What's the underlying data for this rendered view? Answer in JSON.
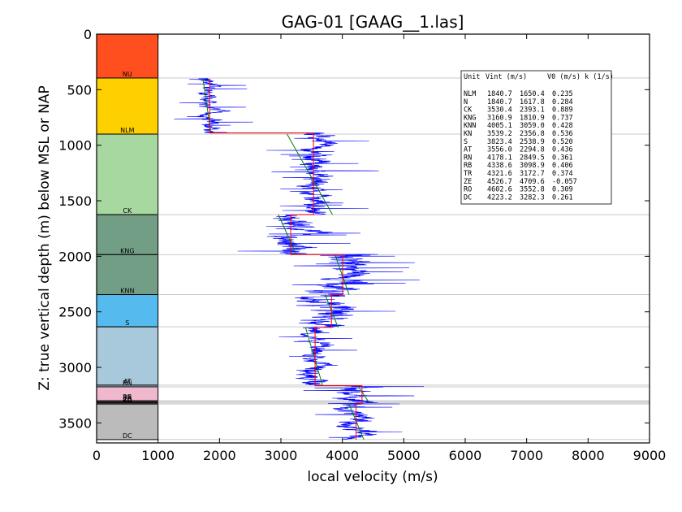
{
  "chart_data": {
    "type": "line",
    "title": "GAG-01 [GAAG__1.las]",
    "xlabel": "local velocity (m/s)",
    "ylabel": "Z: true vertical depth (m) below MSL or NAP",
    "xlim": [
      0,
      9000
    ],
    "ylim": [
      3680,
      0
    ],
    "y_inverted": true,
    "xticks": [
      "0",
      "1000",
      "2000",
      "3000",
      "4000",
      "5000",
      "6000",
      "7000",
      "8000",
      "9000"
    ],
    "yticks": [
      "0",
      "500",
      "1000",
      "1500",
      "2000",
      "2500",
      "3000",
      "3500"
    ],
    "grid": "horizontal lines at unit boundaries",
    "units": [
      {
        "name": "NU",
        "top": 0,
        "base": 395,
        "color": "#ff4f1f"
      },
      {
        "name": "NLM",
        "top": 395,
        "base": 900,
        "color": "#ffd000"
      },
      {
        "name": "CK",
        "top": 900,
        "base": 1625,
        "color": "#a6d8a0"
      },
      {
        "name": "KNG",
        "top": 1625,
        "base": 1985,
        "color": "#739e86"
      },
      {
        "name": "KNN",
        "top": 1985,
        "base": 2345,
        "color": "#739e86"
      },
      {
        "name": "S",
        "top": 2345,
        "base": 2635,
        "color": "#55bbee"
      },
      {
        "name": "AT",
        "top": 2635,
        "base": 3160,
        "color": "#a8c8dc"
      },
      {
        "name": "RN",
        "top": 3160,
        "base": 3175,
        "color": "#a8c8dc"
      },
      {
        "name": "RB",
        "top": 3175,
        "base": 3300,
        "color": "#f0b8cc"
      },
      {
        "name": "TR",
        "top": 3300,
        "base": 3310,
        "color": "#f0b8cc"
      },
      {
        "name": "ZE",
        "top": 3310,
        "base": 3320,
        "color": "#8a8a8a"
      },
      {
        "name": "RO",
        "top": 3320,
        "base": 3330,
        "color": "#bbbbbb"
      },
      {
        "name": "DC",
        "top": 3330,
        "base": 3650,
        "color": "#bbbbbb"
      }
    ],
    "legend": {
      "header": [
        "Unit",
        "Vint (m/s)",
        "V0 (m/s)",
        "k (1/s)"
      ],
      "rows": [
        [
          "NLM",
          "1840.7",
          "1650.4",
          "0.235"
        ],
        [
          "N",
          "1840.7",
          "1617.8",
          "0.284"
        ],
        [
          "CK",
          "3530.4",
          "2393.1",
          "0.889"
        ],
        [
          "KNG",
          "3160.9",
          "1810.9",
          "0.737"
        ],
        [
          "KNN",
          "4005.1",
          "3059.0",
          "0.428"
        ],
        [
          "KN",
          "3539.2",
          "2356.8",
          "0.536"
        ],
        [
          "S",
          "3823.4",
          "2538.9",
          "0.520"
        ],
        [
          "AT",
          "3556.0",
          "2294.8",
          "0.436"
        ],
        [
          "RN",
          "4178.1",
          "2849.5",
          "0.361"
        ],
        [
          "RB",
          "4338.6",
          "3098.9",
          "0.406"
        ],
        [
          "TR",
          "4321.6",
          "3172.7",
          "0.374"
        ],
        [
          "ZE",
          "4526.7",
          "4709.6",
          "-0.057"
        ],
        [
          "RO",
          "4602.6",
          "3552.8",
          "0.309"
        ],
        [
          "DC",
          "4223.2",
          "3282.3",
          "0.261"
        ]
      ]
    },
    "interval_velocity": [
      {
        "top": 400,
        "base": 890,
        "v": 1840
      },
      {
        "top": 890,
        "base": 1625,
        "v": 3530
      },
      {
        "top": 1625,
        "base": 1985,
        "v": 3160
      },
      {
        "top": 1985,
        "base": 2345,
        "v": 4005
      },
      {
        "top": 2345,
        "base": 2640,
        "v": 3823
      },
      {
        "top": 2640,
        "base": 3165,
        "v": 3556
      },
      {
        "top": 3165,
        "base": 3320,
        "v": 4320
      },
      {
        "top": 3320,
        "base": 3650,
        "v": 4223
      }
    ],
    "v0k_trend": [
      [
        [
          400,
          1730
        ],
        [
          890,
          1860
        ]
      ],
      [
        [
          900,
          3100
        ],
        [
          1625,
          3840
        ]
      ],
      [
        [
          1625,
          2960
        ],
        [
          1985,
          3250
        ]
      ],
      [
        [
          1985,
          3880
        ],
        [
          2345,
          4110
        ]
      ],
      [
        [
          2345,
          3720
        ],
        [
          2640,
          3930
        ]
      ],
      [
        [
          2640,
          3400
        ],
        [
          3165,
          3680
        ]
      ],
      [
        [
          3165,
          4250
        ],
        [
          3320,
          4440
        ]
      ],
      [
        [
          3320,
          4100
        ],
        [
          3650,
          4350
        ]
      ]
    ],
    "log_segments": [
      {
        "top": 400,
        "base": 890,
        "mean": 1840,
        "spread": 160
      },
      {
        "top": 890,
        "base": 1625,
        "mean": 3530,
        "spread": 230
      },
      {
        "top": 1625,
        "base": 1985,
        "mean": 3160,
        "spread": 330
      },
      {
        "top": 1985,
        "base": 2345,
        "mean": 4005,
        "spread": 350
      },
      {
        "top": 2345,
        "base": 2640,
        "mean": 3823,
        "spread": 380
      },
      {
        "top": 2640,
        "base": 3165,
        "mean": 3556,
        "spread": 230
      },
      {
        "top": 3165,
        "base": 3320,
        "mean": 4330,
        "spread": 330
      },
      {
        "top": 3320,
        "base": 3650,
        "mean": 4223,
        "spread": 240
      }
    ],
    "colors": {
      "log": "#0000ff",
      "interval": "#ff0000",
      "trend": "#008000"
    }
  }
}
